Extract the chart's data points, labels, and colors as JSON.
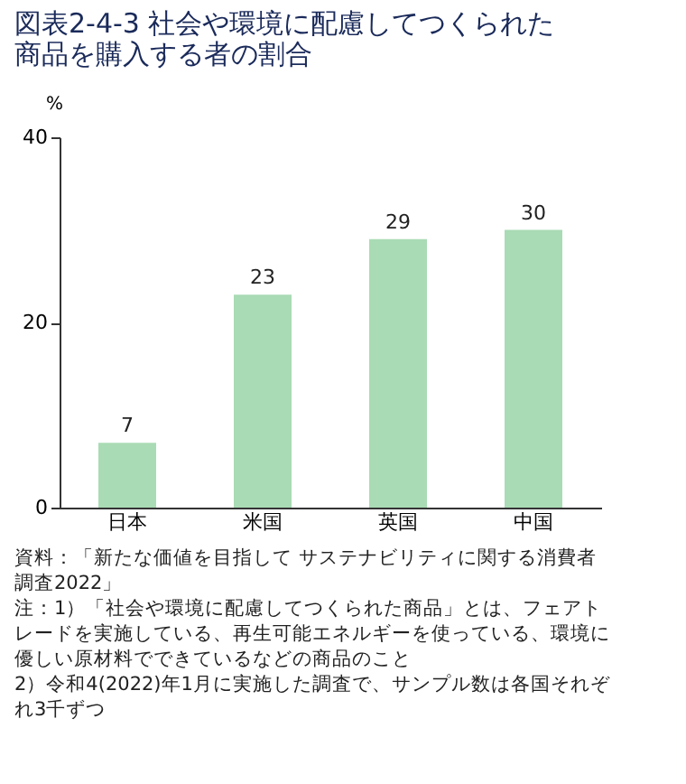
{
  "chart_data": {
    "type": "bar",
    "title": "図表2-4-3 社会や環境に配慮してつくられた商品を購入する者の割合",
    "categories": [
      "日本",
      "米国",
      "英国",
      "中国"
    ],
    "values": [
      7,
      23,
      29,
      30
    ],
    "color": "#a9dbb4",
    "ylabel": "%",
    "ylim": [
      0,
      40
    ],
    "yticks": [
      0,
      20,
      40
    ],
    "grid": false,
    "data_labels": true,
    "annotations": [
      "資料：「新たな価値を目指して サステナビリティに関する消費者調査2022」",
      "注：1）「社会や環境に配慮してつくられた商品」とは、フェアトレードを実施している、再生可能エネルギーを使っている、環境に優しい原材料でできているなどの商品のこと",
      "2）令和4(2022)年1月に実施した調査で、サンプル数は各国それぞれ3千ずつ"
    ]
  }
}
